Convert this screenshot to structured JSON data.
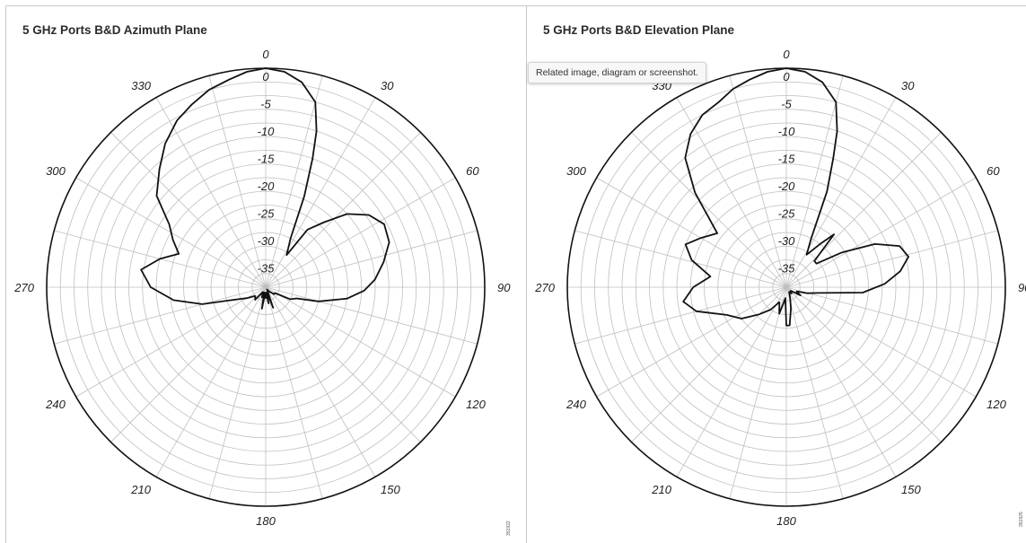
{
  "tooltip": "Related image, diagram or screenshot.",
  "colors": {
    "grid": "#bfbfbf",
    "outer_ring": "#111111",
    "trace": "#111111",
    "divider": "#c9c9c9"
  },
  "chart_data": [
    {
      "type": "polar",
      "title": "5 GHz Ports B&D Azimuth Plane",
      "figure_id": "351922",
      "angular_ticks": [
        "0",
        "30",
        "60",
        "90",
        "120",
        "150",
        "180",
        "210",
        "240",
        "270",
        "300",
        "330"
      ],
      "radial_ticks": [
        "0",
        "-5",
        "-10",
        "-15",
        "-20",
        "-25",
        "-30",
        "-35"
      ],
      "rlim": [
        -40,
        0
      ],
      "angle_direction": "clockwise",
      "zero_angle": "top",
      "grid": true,
      "series": [
        {
          "points": [
            [
              0,
              0
            ],
            [
              5,
              -0.5
            ],
            [
              10,
              -2
            ],
            [
              15,
              -5
            ],
            [
              18,
              -10
            ],
            [
              20,
              -15
            ],
            [
              23,
              -22
            ],
            [
              27,
              -30
            ],
            [
              33,
              -33
            ],
            [
              36,
              -27
            ],
            [
              42,
              -24
            ],
            [
              48,
              -20
            ],
            [
              55,
              -17
            ],
            [
              62,
              -15.5
            ],
            [
              70,
              -16
            ],
            [
              78,
              -18
            ],
            [
              86,
              -20
            ],
            [
              92,
              -22
            ],
            [
              98,
              -25
            ],
            [
              105,
              -30
            ],
            [
              110,
              -34
            ],
            [
              116,
              -35
            ],
            [
              122,
              -38
            ],
            [
              130,
              -38
            ],
            [
              140,
              -39
            ],
            [
              150,
              -39.5
            ],
            [
              160,
              -36
            ],
            [
              165,
              -39
            ],
            [
              170,
              -37
            ],
            [
              175,
              -39
            ],
            [
              180,
              -38
            ],
            [
              185,
              -39
            ],
            [
              190,
              -36
            ],
            [
              195,
              -39
            ],
            [
              200,
              -38
            ],
            [
              210,
              -39
            ],
            [
              220,
              -37
            ],
            [
              230,
              -37.5
            ],
            [
              240,
              -36
            ],
            [
              250,
              -33
            ],
            [
              255,
              -28
            ],
            [
              262,
              -23
            ],
            [
              270,
              -19
            ],
            [
              278,
              -17
            ],
            [
              285,
              -20
            ],
            [
              291,
              -23
            ],
            [
              297,
              -21
            ],
            [
              303,
              -19
            ],
            [
              310,
              -14
            ],
            [
              318,
              -11
            ],
            [
              325,
              -8
            ],
            [
              332,
              -5.5
            ],
            [
              338,
              -4
            ],
            [
              344,
              -2.5
            ],
            [
              350,
              -1.5
            ],
            [
              355,
              -0.5
            ],
            [
              360,
              0
            ]
          ]
        }
      ]
    },
    {
      "type": "polar",
      "title": "5 GHz Ports B&D Elevation Plane",
      "figure_id": "351925",
      "angular_ticks": [
        "0",
        "30",
        "60",
        "90",
        "120",
        "150",
        "180",
        "210",
        "240",
        "270",
        "300",
        "330"
      ],
      "radial_ticks": [
        "0",
        "-5",
        "-10",
        "-15",
        "-20",
        "-25",
        "-30",
        "-35"
      ],
      "rlim": [
        -40,
        0
      ],
      "angle_direction": "clockwise",
      "zero_angle": "top",
      "grid": true,
      "series": [
        {
          "points": [
            [
              0,
              0
            ],
            [
              5,
              -0.5
            ],
            [
              10,
              -2
            ],
            [
              15,
              -5
            ],
            [
              18,
              -10
            ],
            [
              20,
              -15
            ],
            [
              23,
              -21
            ],
            [
              27,
              -30
            ],
            [
              32,
              -33
            ],
            [
              38,
              -30
            ],
            [
              42,
              -27
            ],
            [
              47,
              -33
            ],
            [
              52,
              -33
            ],
            [
              58,
              -28
            ],
            [
              64,
              -22
            ],
            [
              70,
              -18
            ],
            [
              76,
              -17
            ],
            [
              82,
              -19
            ],
            [
              88,
              -22
            ],
            [
              94,
              -26
            ],
            [
              100,
              -34
            ],
            [
              106,
              -36
            ],
            [
              112,
              -38
            ],
            [
              120,
              -37
            ],
            [
              130,
              -39
            ],
            [
              140,
              -38.5
            ],
            [
              150,
              -39
            ],
            [
              160,
              -38
            ],
            [
              168,
              -36
            ],
            [
              175,
              -33
            ],
            [
              180,
              -33
            ],
            [
              185,
              -38
            ],
            [
              190,
              -37
            ],
            [
              195,
              -35
            ],
            [
              205,
              -37
            ],
            [
              215,
              -35
            ],
            [
              225,
              -33
            ],
            [
              235,
              -30
            ],
            [
              245,
              -28
            ],
            [
              255,
              -23
            ],
            [
              262,
              -21
            ],
            [
              270,
              -23
            ],
            [
              278,
              -26
            ],
            [
              286,
              -22
            ],
            [
              293,
              -20
            ],
            [
              300,
              -22
            ],
            [
              308,
              -24
            ],
            [
              316,
              -16
            ],
            [
              322,
              -10
            ],
            [
              328,
              -7
            ],
            [
              334,
              -5
            ],
            [
              340,
              -4
            ],
            [
              345,
              -2.5
            ],
            [
              350,
              -1.5
            ],
            [
              355,
              -0.5
            ],
            [
              360,
              0
            ]
          ]
        }
      ]
    }
  ]
}
